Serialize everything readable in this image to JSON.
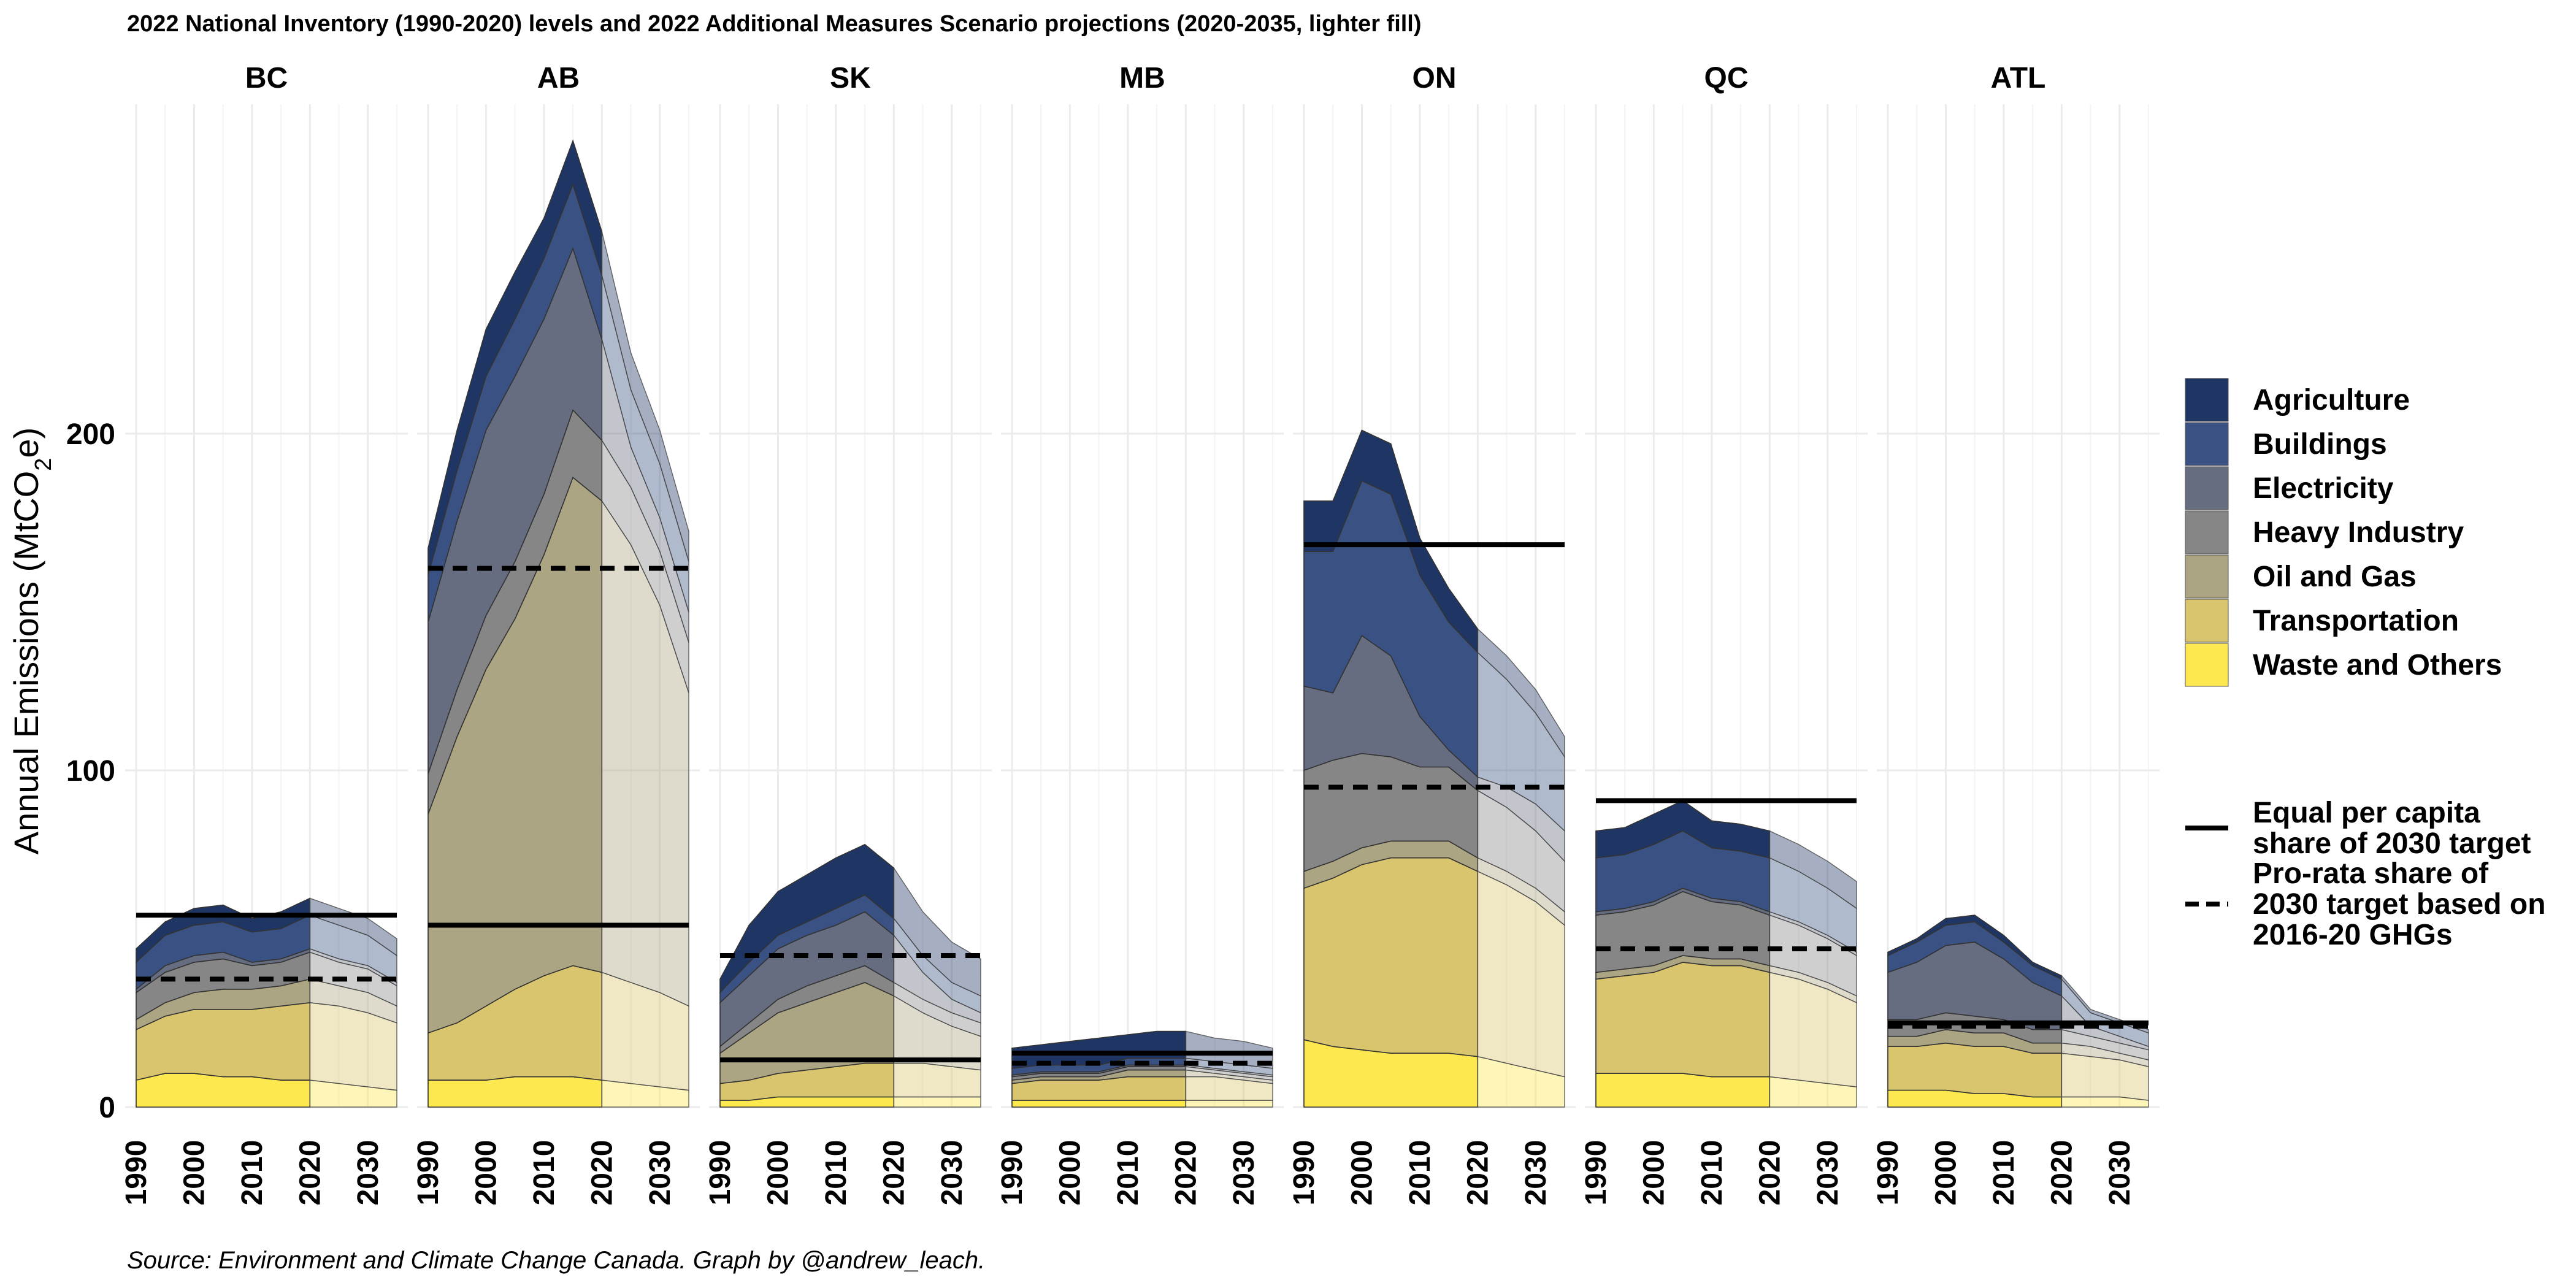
{
  "chart_data": {
    "type": "area",
    "title": "2022 National Inventory (1990-2020) levels and 2022 Additional Measures Scenario projections (2020-2035, lighter fill)",
    "caption": "Source: Environment and Climate Change Canada. Graph by @andrew_leach.",
    "ylabel_main": "Annual Emissions  (MtCO",
    "ylabel_sub": "2",
    "ylabel_end": "e)",
    "ylim": [
      0,
      300
    ],
    "xlim": [
      1990,
      2035
    ],
    "y_ticks": [
      0,
      100,
      200
    ],
    "x_ticks": [
      "1990",
      "2000",
      "2010",
      "2020",
      "2030"
    ],
    "history_end": 2020,
    "grid": true,
    "legend_position": "right",
    "sectors": [
      "Waste and Others",
      "Transportation",
      "Oil and Gas",
      "Heavy Industry",
      "Electricity",
      "Buildings",
      "Agriculture"
    ],
    "legend_order": [
      "Agriculture",
      "Buildings",
      "Electricity",
      "Heavy Industry",
      "Oil and Gas",
      "Transportation",
      "Waste and Others"
    ],
    "colors": {
      "Agriculture": "#1f3664",
      "Buildings": "#3a5283",
      "Electricity": "#666d80",
      "Heavy Industry": "#868686",
      "Oil and Gas": "#aca583",
      "Transportation": "#d9c56d",
      "Waste and Others": "#fde94f"
    },
    "line_legend": [
      {
        "style": "solid",
        "label_lines": [
          "Equal per capita",
          "share of 2030 target"
        ]
      },
      {
        "style": "dashed",
        "label_lines": [
          "Pro-rata share of",
          "2030 target based on",
          "2016-20 GHGs"
        ]
      }
    ],
    "provinces": [
      {
        "name": "BC",
        "per_capita": 57,
        "pro_rata": 38,
        "years": [
          1990,
          1995,
          2000,
          2005,
          2010,
          2015,
          2020,
          2025,
          2030,
          2035
        ],
        "series": {
          "Waste and Others": [
            8,
            10,
            10,
            9,
            9,
            8,
            8,
            7,
            6,
            5
          ],
          "Transportation": [
            15,
            17,
            19,
            20,
            20,
            22,
            23,
            23,
            22,
            20
          ],
          "Oil and Gas": [
            3,
            4,
            5,
            6,
            6,
            6,
            7,
            6,
            6,
            5
          ],
          "Heavy Industry": [
            8,
            9,
            9,
            9,
            7,
            7,
            8,
            7,
            7,
            6
          ],
          "Electricity": [
            1,
            2,
            2,
            2,
            1,
            1,
            1,
            1,
            1,
            1
          ],
          "Buildings": [
            8,
            9,
            9,
            9,
            9,
            9,
            10,
            10,
            9,
            8
          ],
          "Agriculture": [
            4,
            4,
            5,
            5,
            4,
            5,
            5,
            5,
            5,
            5
          ]
        }
      },
      {
        "name": "AB",
        "per_capita": 54,
        "pro_rata": 160,
        "years": [
          1990,
          1995,
          2000,
          2005,
          2010,
          2015,
          2020,
          2025,
          2030,
          2035
        ],
        "series": {
          "Waste and Others": [
            8,
            8,
            8,
            9,
            9,
            9,
            8,
            7,
            6,
            5
          ],
          "Transportation": [
            14,
            17,
            22,
            26,
            30,
            33,
            32,
            30,
            28,
            25
          ],
          "Oil and Gas": [
            65,
            85,
            100,
            110,
            125,
            145,
            140,
            130,
            115,
            93
          ],
          "Heavy Industry": [
            12,
            14,
            16,
            17,
            18,
            20,
            18,
            17,
            16,
            15
          ],
          "Electricity": [
            45,
            50,
            55,
            55,
            52,
            48,
            30,
            12,
            10,
            9
          ],
          "Buildings": [
            14,
            15,
            16,
            17,
            18,
            19,
            19,
            17,
            16,
            15
          ],
          "Agriculture": [
            8,
            12,
            14,
            14,
            12,
            13,
            13,
            11,
            10,
            9
          ]
        }
      },
      {
        "name": "SK",
        "per_capita": 14,
        "pro_rata": 45,
        "years": [
          1990,
          1995,
          2000,
          2005,
          2010,
          2015,
          2020,
          2025,
          2030,
          2035
        ],
        "series": {
          "Waste and Others": [
            2,
            2,
            3,
            3,
            3,
            3,
            3,
            3,
            3,
            3
          ],
          "Transportation": [
            5,
            6,
            7,
            8,
            9,
            10,
            10,
            10,
            9,
            8
          ],
          "Oil and Gas": [
            9,
            14,
            18,
            20,
            22,
            24,
            20,
            15,
            12,
            10
          ],
          "Heavy Industry": [
            2,
            3,
            4,
            5,
            5,
            5,
            4,
            4,
            4,
            4
          ],
          "Electricity": [
            13,
            14,
            15,
            15,
            15,
            16,
            14,
            8,
            4,
            3
          ],
          "Buildings": [
            3,
            4,
            4,
            4,
            5,
            5,
            5,
            5,
            5,
            5
          ],
          "Agriculture": [
            4,
            11,
            13,
            14,
            15,
            15,
            15,
            13,
            12,
            11
          ]
        }
      },
      {
        "name": "MB",
        "per_capita": 16,
        "pro_rata": 13,
        "years": [
          1990,
          1995,
          2000,
          2005,
          2010,
          2015,
          2020,
          2025,
          2030,
          2035
        ],
        "series": {
          "Waste and Others": [
            2,
            2,
            2,
            2,
            2,
            2,
            2,
            2,
            2,
            2
          ],
          "Transportation": [
            5,
            6,
            6,
            6,
            7,
            7,
            7,
            7,
            6,
            5
          ],
          "Oil and Gas": [
            1,
            1,
            1,
            1,
            2,
            2,
            2,
            1,
            1,
            1
          ],
          "Heavy Industry": [
            1,
            1,
            1,
            1,
            1,
            1,
            1,
            1,
            1,
            1
          ],
          "Electricity": [
            0.5,
            0.5,
            0.5,
            0.5,
            0.5,
            0.5,
            0.5,
            0.5,
            0.5,
            0.5
          ],
          "Buildings": [
            2,
            2,
            2,
            2,
            2,
            2,
            2,
            2,
            2,
            2
          ],
          "Agriculture": [
            6,
            6,
            7,
            8,
            7,
            8,
            8,
            7,
            7,
            6
          ]
        }
      },
      {
        "name": "ON",
        "per_capita": 167,
        "pro_rata": 95,
        "years": [
          1990,
          1995,
          2000,
          2005,
          2010,
          2015,
          2020,
          2025,
          2030,
          2035
        ],
        "series": {
          "Waste and Others": [
            20,
            18,
            17,
            16,
            16,
            16,
            15,
            13,
            11,
            9
          ],
          "Transportation": [
            45,
            50,
            55,
            58,
            58,
            58,
            55,
            53,
            50,
            45
          ],
          "Oil and Gas": [
            5,
            5,
            5,
            5,
            5,
            5,
            4,
            4,
            4,
            4
          ],
          "Heavy Industry": [
            30,
            30,
            28,
            25,
            22,
            22,
            20,
            19,
            17,
            15
          ],
          "Electricity": [
            25,
            20,
            35,
            30,
            15,
            5,
            4,
            6,
            8,
            9
          ],
          "Buildings": [
            40,
            42,
            46,
            48,
            42,
            38,
            37,
            32,
            27,
            22
          ],
          "Agriculture": [
            15,
            15,
            15,
            15,
            11,
            10,
            7,
            7,
            7,
            6
          ]
        }
      },
      {
        "name": "QC",
        "per_capita": 91,
        "pro_rata": 47,
        "years": [
          1990,
          1995,
          2000,
          2005,
          2010,
          2015,
          2020,
          2025,
          2030,
          2035
        ],
        "series": {
          "Waste and Others": [
            10,
            10,
            10,
            10,
            9,
            9,
            9,
            8,
            7,
            6
          ],
          "Transportation": [
            28,
            29,
            30,
            33,
            33,
            33,
            31,
            30,
            28,
            25
          ],
          "Oil and Gas": [
            2,
            2,
            2,
            2,
            2,
            2,
            2,
            2,
            2,
            2
          ],
          "Heavy Industry": [
            17,
            17,
            18,
            19,
            17,
            16,
            15,
            14,
            13,
            12
          ],
          "Electricity": [
            1,
            1,
            1,
            1,
            1,
            1,
            1,
            1,
            1,
            1
          ],
          "Buildings": [
            16,
            16,
            17,
            17,
            15,
            15,
            16,
            15,
            14,
            13
          ],
          "Agriculture": [
            8,
            8,
            9,
            9,
            8,
            8,
            8,
            8,
            8,
            8
          ]
        }
      },
      {
        "name": "ATL",
        "per_capita": 25,
        "pro_rata": 24,
        "years": [
          1990,
          1995,
          2000,
          2005,
          2010,
          2015,
          2020,
          2025,
          2030,
          2035
        ],
        "series": {
          "Waste and Others": [
            5,
            5,
            5,
            4,
            4,
            3,
            3,
            3,
            3,
            2
          ],
          "Transportation": [
            13,
            13,
            14,
            14,
            14,
            13,
            13,
            12,
            11,
            10
          ],
          "Oil and Gas": [
            3,
            3,
            4,
            4,
            4,
            3,
            3,
            3,
            2,
            2
          ],
          "Heavy Industry": [
            5,
            5,
            5,
            5,
            4,
            4,
            4,
            3,
            3,
            3
          ],
          "Electricity": [
            14,
            17,
            20,
            22,
            18,
            14,
            10,
            3,
            2,
            1
          ],
          "Buildings": [
            5,
            6,
            6,
            6,
            5,
            5,
            5,
            4,
            4,
            4
          ],
          "Agriculture": [
            1,
            1,
            2,
            2,
            2,
            1,
            1,
            1,
            1,
            1
          ]
        }
      }
    ]
  }
}
